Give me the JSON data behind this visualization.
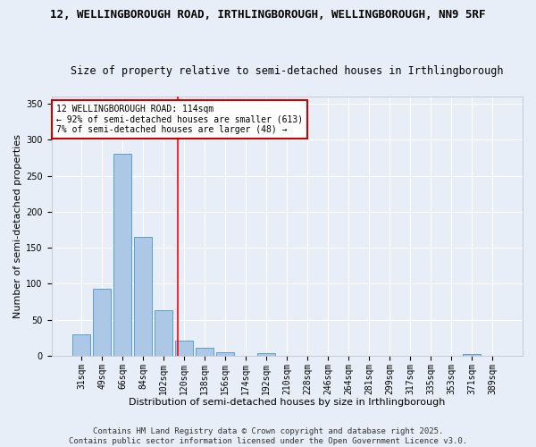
{
  "title_line1": "12, WELLINGBOROUGH ROAD, IRTHLINGBOROUGH, WELLINGBOROUGH, NN9 5RF",
  "title_line2": "Size of property relative to semi-detached houses in Irthlingborough",
  "xlabel": "Distribution of semi-detached houses by size in Irthlingborough",
  "ylabel": "Number of semi-detached properties",
  "categories": [
    "31sqm",
    "49sqm",
    "66sqm",
    "84sqm",
    "102sqm",
    "120sqm",
    "138sqm",
    "156sqm",
    "174sqm",
    "192sqm",
    "210sqm",
    "228sqm",
    "246sqm",
    "264sqm",
    "281sqm",
    "299sqm",
    "317sqm",
    "335sqm",
    "353sqm",
    "371sqm",
    "389sqm"
  ],
  "values": [
    30,
    93,
    280,
    165,
    63,
    21,
    11,
    5,
    0,
    4,
    0,
    0,
    0,
    0,
    0,
    0,
    0,
    0,
    0,
    3,
    0
  ],
  "bar_color": "#adc8e6",
  "bar_edge_color": "#5a9fd4",
  "red_line_value": 114,
  "annotation_title": "12 WELLINGBOROUGH ROAD: 114sqm",
  "annotation_line2": "← 92% of semi-detached houses are smaller (613)",
  "annotation_line3": "7% of semi-detached houses are larger (48) →",
  "annotation_box_color": "#ffffff",
  "annotation_box_edge": "#cc0000",
  "footer_line1": "Contains HM Land Registry data © Crown copyright and database right 2025.",
  "footer_line2": "Contains public sector information licensed under the Open Government Licence v3.0.",
  "ylim": [
    0,
    360
  ],
  "background_color": "#e8eef8",
  "grid_color": "#ffffff",
  "title_fontsize": 9,
  "subtitle_fontsize": 8.5,
  "axis_label_fontsize": 8,
  "tick_fontsize": 7,
  "footer_fontsize": 6.5
}
